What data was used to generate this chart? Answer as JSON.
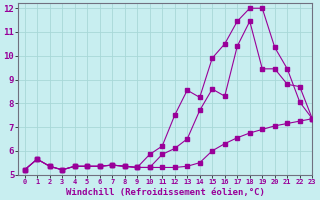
{
  "background_color": "#c8eef0",
  "grid_color": "#a8d8d8",
  "line_color": "#990099",
  "spine_color": "#707080",
  "xlim": [
    -0.5,
    23
  ],
  "ylim": [
    5,
    12.2
  ],
  "xlabel": "Windchill (Refroidissement éolien,°C)",
  "xlabel_fontsize": 6.5,
  "yticks": [
    5,
    6,
    7,
    8,
    9,
    10,
    11,
    12
  ],
  "xticks": [
    0,
    1,
    2,
    3,
    4,
    5,
    6,
    7,
    8,
    9,
    10,
    11,
    12,
    13,
    14,
    15,
    16,
    17,
    18,
    19,
    20,
    21,
    22,
    23
  ],
  "series1_x": [
    0,
    1,
    2,
    3,
    4,
    5,
    6,
    7,
    8,
    9,
    10,
    11,
    12,
    13,
    14,
    15,
    16,
    17,
    18,
    19,
    20,
    21,
    22,
    23
  ],
  "series1_y": [
    5.2,
    5.65,
    5.35,
    5.2,
    5.35,
    5.35,
    5.35,
    5.4,
    5.35,
    5.3,
    5.3,
    5.3,
    5.3,
    5.35,
    5.5,
    6.0,
    6.3,
    6.55,
    6.75,
    6.9,
    7.05,
    7.15,
    7.25,
    7.35
  ],
  "series2_x": [
    0,
    1,
    2,
    3,
    4,
    5,
    6,
    7,
    8,
    9,
    10,
    11,
    12,
    13,
    14,
    15,
    16,
    17,
    18,
    19,
    20,
    21,
    22,
    23
  ],
  "series2_y": [
    5.2,
    5.65,
    5.35,
    5.2,
    5.35,
    5.35,
    5.35,
    5.4,
    5.35,
    5.3,
    5.85,
    6.2,
    7.5,
    8.55,
    8.25,
    9.9,
    10.5,
    11.45,
    12.0,
    12.0,
    10.35,
    9.45,
    8.05,
    7.35
  ],
  "series3_x": [
    0,
    1,
    2,
    3,
    4,
    5,
    6,
    7,
    8,
    9,
    10,
    11,
    12,
    13,
    14,
    15,
    16,
    17,
    18,
    19,
    20,
    21,
    22,
    23
  ],
  "series3_y": [
    5.2,
    5.65,
    5.35,
    5.2,
    5.35,
    5.35,
    5.35,
    5.4,
    5.35,
    5.3,
    5.3,
    5.85,
    6.1,
    6.5,
    7.7,
    8.6,
    8.3,
    10.4,
    11.45,
    9.45,
    9.45,
    8.8,
    8.7,
    7.35
  ]
}
